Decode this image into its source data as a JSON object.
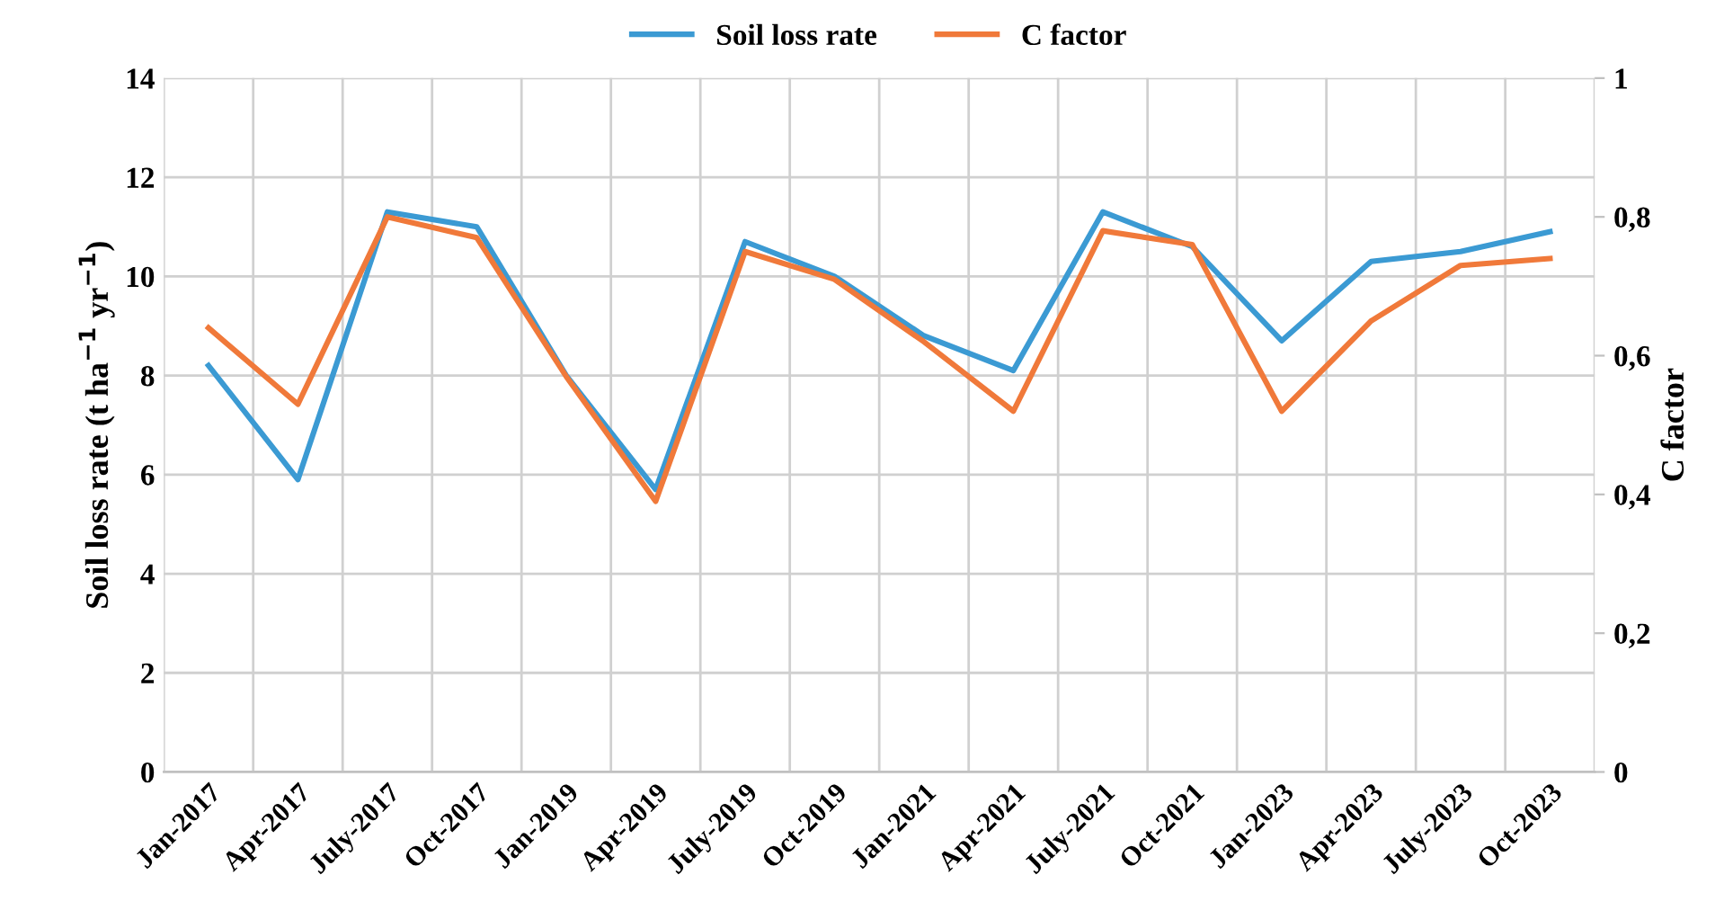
{
  "chart_data": {
    "type": "line",
    "ylabel": "Soil loss rate (t ha$^{−1}$ yr$^{−1}$)",
    "y2label": "C factor",
    "categories": [
      "Jan-2017",
      "Apr-2017",
      "July-2017",
      "Oct-2017",
      "Jan-2019",
      "Apr-2019",
      "July-2019",
      "Oct-2019",
      "Jan-2021",
      "Apr-2021",
      "July-2021",
      "Oct-2021",
      "Jan-2023",
      "Apr-2023",
      "July-2023",
      "Oct-2023"
    ],
    "series": [
      {
        "name": "Soil loss rate",
        "color": "#3b9ad3",
        "values": [
          8.2,
          5.9,
          11.3,
          11.0,
          8.0,
          5.7,
          10.7,
          10.0,
          8.8,
          8.1,
          11.3,
          10.6,
          8.7,
          10.3,
          10.5,
          10.9
        ]
      },
      {
        "name": "C factor",
        "color": "#f0793a",
        "axis": "y2",
        "values": [
          0.64,
          0.53,
          0.8,
          0.77,
          0.57,
          0.39,
          0.75,
          0.71,
          0.62,
          0.52,
          0.78,
          0.76,
          0.52,
          0.65,
          0.73,
          0.74
        ]
      }
    ],
    "ylim": [
      0,
      14
    ],
    "yticks": [
      0,
      2,
      4,
      6,
      8,
      10,
      12,
      14
    ],
    "y2lim": [
      0,
      1
    ],
    "y2ticks": [
      0,
      {
        "value": 0.2,
        "label": "0,2"
      },
      {
        "value": 0.4,
        "label": "0,4"
      },
      {
        "value": 0.6,
        "label": "0,6"
      },
      {
        "value": 0.8,
        "label": "0,8"
      },
      1
    ],
    "grid": true,
    "legend": "top",
    "marker": "none",
    "line_style": "solid"
  }
}
